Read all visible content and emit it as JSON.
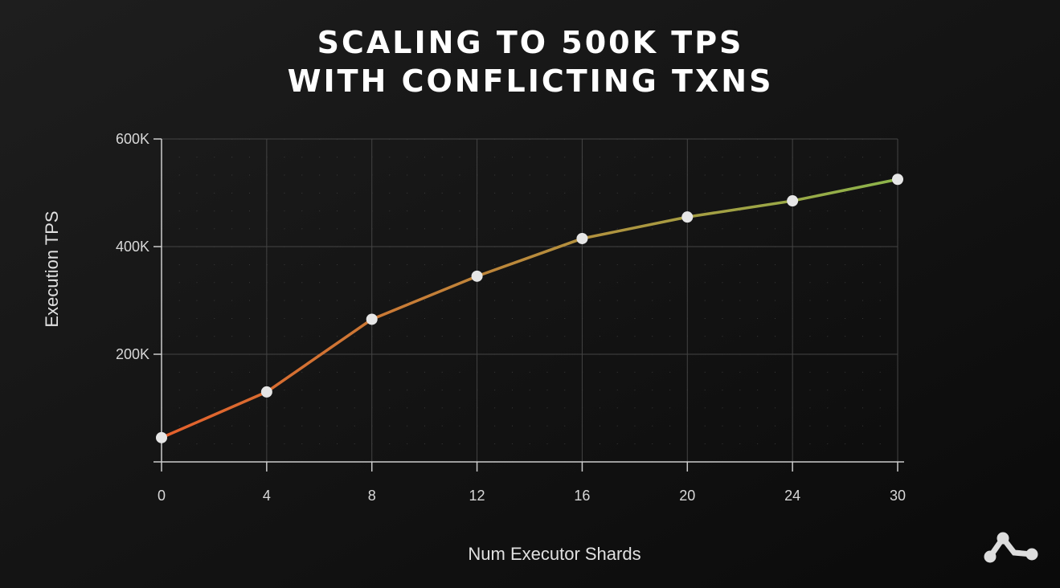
{
  "chart_data": {
    "type": "line",
    "title": [
      "SCALING TO 500K TPS",
      "WITH CONFLICTING TXNS"
    ],
    "x_label": "Num Executor Shards",
    "y_label": "Execution TPS",
    "categories": [
      "0",
      "4",
      "8",
      "12",
      "16",
      "20",
      "24",
      "30"
    ],
    "series": [
      {
        "name": "Execution TPS",
        "gradient": [
          "#e5602c",
          "#8db54b"
        ],
        "marker_color": "#e6e6e6",
        "values": [
          45000,
          130000,
          265000,
          345000,
          415000,
          455000,
          485000,
          525000
        ]
      }
    ],
    "ylim": [
      0,
      600000
    ],
    "yticks": [
      {
        "value": 200000,
        "label": "200K"
      },
      {
        "value": 400000,
        "label": "400K"
      },
      {
        "value": 600000,
        "label": "600K"
      }
    ],
    "grid": true
  }
}
